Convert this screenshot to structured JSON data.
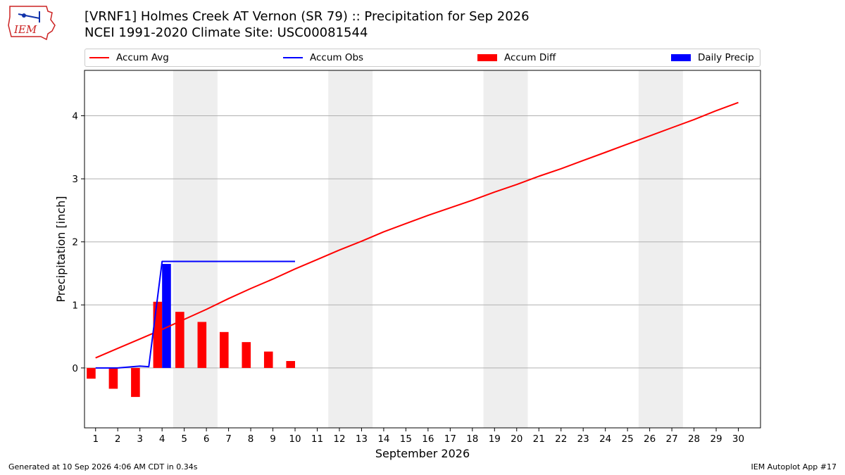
{
  "header": {
    "title_line1": "[VRNF1] Holmes Creek  AT Vernon (SR 79) :: Precipitation for Sep 2026",
    "title_line2": "NCEI 1991-2020 Climate Site: USC00081544"
  },
  "logo": {
    "text": "IEM",
    "color": "#cc2222"
  },
  "footer": {
    "generated": "Generated at 10 Sep 2026 4:06 AM CDT in 0.34s",
    "app": "IEM Autoplot App #17"
  },
  "colors": {
    "avg": "#ff0000",
    "obs": "#0000ff",
    "diff": "#ff0000",
    "daily": "#0000ff",
    "weekend": "#eeeeee",
    "grid": "#b0b0b0"
  },
  "chart_data": {
    "type": "bar",
    "xlabel": "September 2026",
    "ylabel": "Precipitation [inch]",
    "xlim": [
      0.5,
      31.0
    ],
    "ylim": [
      -0.95,
      4.72
    ],
    "yticks": [
      0,
      1,
      2,
      3,
      4
    ],
    "days": [
      1,
      2,
      3,
      4,
      5,
      6,
      7,
      8,
      9,
      10,
      11,
      12,
      13,
      14,
      15,
      16,
      17,
      18,
      19,
      20,
      21,
      22,
      23,
      24,
      25,
      26,
      27,
      28,
      29,
      30
    ],
    "weekend_ranges": [
      [
        4.5,
        6.5
      ],
      [
        11.5,
        13.5
      ],
      [
        18.5,
        20.5
      ],
      [
        25.5,
        27.5
      ]
    ],
    "legend": {
      "position": "top",
      "entries": [
        "Accum Avg",
        "Accum Obs",
        "Accum Diff",
        "Daily Precip"
      ]
    },
    "series": [
      {
        "name": "Accum Avg",
        "kind": "line",
        "x": [
          1,
          2,
          3,
          4,
          5,
          6,
          7,
          8,
          9,
          10,
          11,
          12,
          13,
          14,
          15,
          16,
          17,
          18,
          19,
          20,
          21,
          22,
          23,
          24,
          25,
          26,
          27,
          28,
          29,
          30
        ],
        "values": [
          0.16,
          0.31,
          0.46,
          0.61,
          0.77,
          0.93,
          1.1,
          1.26,
          1.41,
          1.57,
          1.72,
          1.87,
          2.01,
          2.16,
          2.29,
          2.42,
          2.54,
          2.66,
          2.79,
          2.91,
          3.04,
          3.16,
          3.29,
          3.42,
          3.55,
          3.68,
          3.81,
          3.94,
          4.08,
          4.21
        ]
      },
      {
        "name": "Accum Obs",
        "kind": "line",
        "x": [
          1,
          2,
          3,
          3.4,
          4,
          5,
          6,
          7,
          8,
          9,
          10
        ],
        "values": [
          0.0,
          0.0,
          0.03,
          0.02,
          1.69,
          1.69,
          1.69,
          1.69,
          1.69,
          1.69,
          1.69
        ]
      },
      {
        "name": "Accum Diff",
        "kind": "bar",
        "x": [
          1,
          2,
          3,
          4,
          5,
          6,
          7,
          8,
          9,
          10
        ],
        "values": [
          -0.17,
          -0.33,
          -0.46,
          1.05,
          0.89,
          0.73,
          0.57,
          0.41,
          0.26,
          0.11
        ]
      },
      {
        "name": "Daily Precip",
        "kind": "bar",
        "x": [
          4
        ],
        "values": [
          1.65
        ]
      }
    ]
  }
}
